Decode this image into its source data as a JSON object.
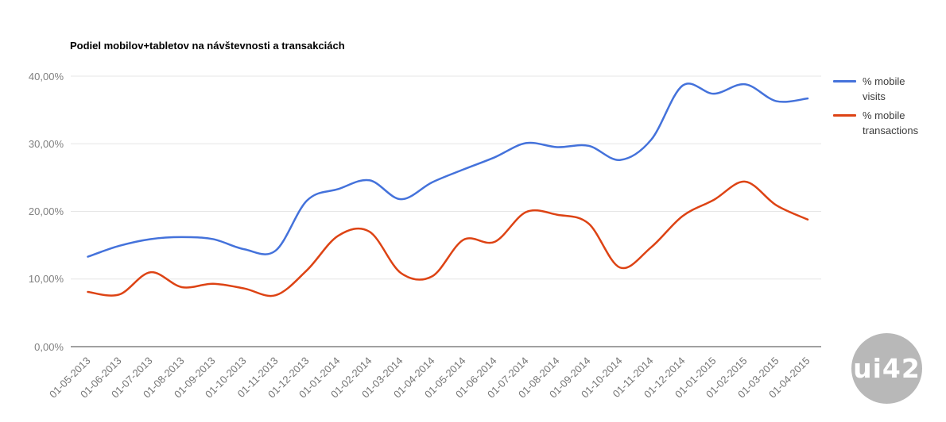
{
  "chart": {
    "background": "#ffffff"
  },
  "chart_data": {
    "type": "line",
    "title": "Podiel mobilov+tabletov na návštevnosti a transakciách",
    "xlabel": "",
    "ylabel": "",
    "categories": [
      "01-05-2013",
      "01-06-2013",
      "01-07-2013",
      "01-08-2013",
      "01-09-2013",
      "01-10-2013",
      "01-11-2013",
      "01-12-2013",
      "01-01-2014",
      "01-02-2014",
      "01-03-2014",
      "01-04-2014",
      "01-05-2014",
      "01-06-2014",
      "01-07-2014",
      "01-08-2014",
      "01-09-2014",
      "01-10-2014",
      "01-11-2014",
      "01-12-2014",
      "01-01-2015",
      "01-02-2015",
      "01-03-2015",
      "01-04-2015"
    ],
    "series": [
      {
        "name": "% mobile visits",
        "color": "#4472DB",
        "values": [
          13.3,
          14.9,
          15.9,
          16.2,
          15.9,
          14.4,
          14.2,
          21.6,
          23.3,
          24.6,
          21.8,
          24.3,
          26.2,
          28.0,
          30.1,
          29.5,
          29.7,
          27.6,
          30.6,
          38.6,
          37.4,
          38.8,
          36.3,
          36.7
        ]
      },
      {
        "name": "% mobile transactions",
        "color": "#DD4314",
        "values": [
          8.1,
          7.7,
          11.0,
          8.8,
          9.3,
          8.6,
          7.6,
          11.3,
          16.4,
          17.0,
          10.9,
          10.4,
          15.8,
          15.5,
          19.9,
          19.5,
          18.2,
          11.7,
          14.7,
          19.3,
          21.7,
          24.4,
          20.9,
          18.8
        ]
      }
    ],
    "ylim": [
      0,
      40
    ],
    "yticks": [
      0,
      10,
      20,
      30,
      40
    ],
    "ytick_labels": [
      "0,00%",
      "10,00%",
      "20,00%",
      "30,00%",
      "40,00%"
    ],
    "grid": true,
    "legend_position": "right",
    "curve": "smooth",
    "axis_colors": {
      "grid": "#e6e6e6",
      "axis": "#424242",
      "tick_text": "#808080"
    }
  },
  "logo": {
    "text": "ui42",
    "background": "#b8b8b8",
    "text_color": "#ffffff"
  }
}
